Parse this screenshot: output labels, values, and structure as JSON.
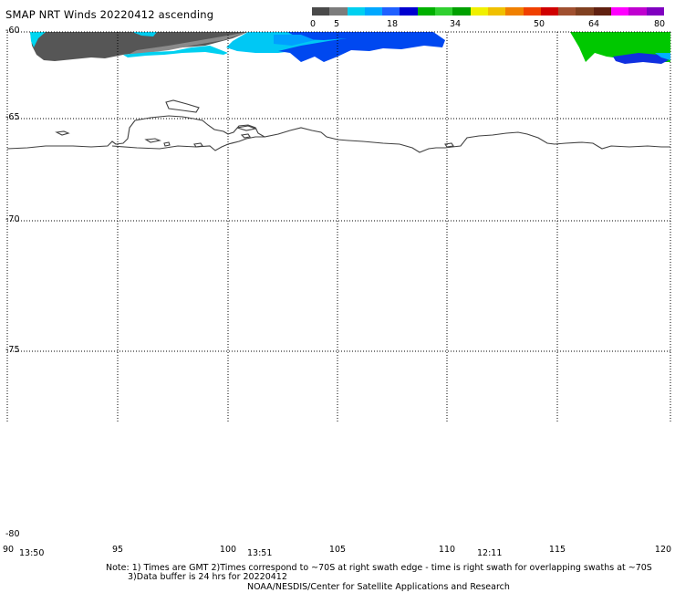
{
  "title": "SMAP NRT Winds 20220412 ascending",
  "colorbar": {
    "ticks": [
      "0",
      "5",
      "18",
      "34",
      "50",
      "64",
      "80"
    ],
    "segments": [
      "#4a4a4a",
      "#7c7c7c",
      "#00d0f0",
      "#00a8ff",
      "#2060ff",
      "#0000d0",
      "#00b000",
      "#30d030",
      "#00a000",
      "#f0f000",
      "#f0c000",
      "#f08000",
      "#f04000",
      "#d00000",
      "#a05030",
      "#804020",
      "#602010",
      "#ff00ff",
      "#c000d0",
      "#8000c0"
    ]
  },
  "map": {
    "lat_labels": [
      "-60",
      "-65",
      "-70",
      "-75",
      "-80"
    ],
    "lon_labels": [
      "90",
      "95",
      "100",
      "105",
      "110",
      "115",
      "120"
    ]
  },
  "swath_times": [
    "13:50",
    "13:51",
    "12:11"
  ],
  "footer": {
    "note_line1": "Note: 1) Times are GMT 2)Times correspond to ~70S at right swath edge - time is right swath for overlapping swaths at ~70S",
    "note_line2": "3)Data buffer is 24 hrs for 20220412",
    "credit": "NOAA/NESDIS/Center for Satellite Applications and Research"
  }
}
